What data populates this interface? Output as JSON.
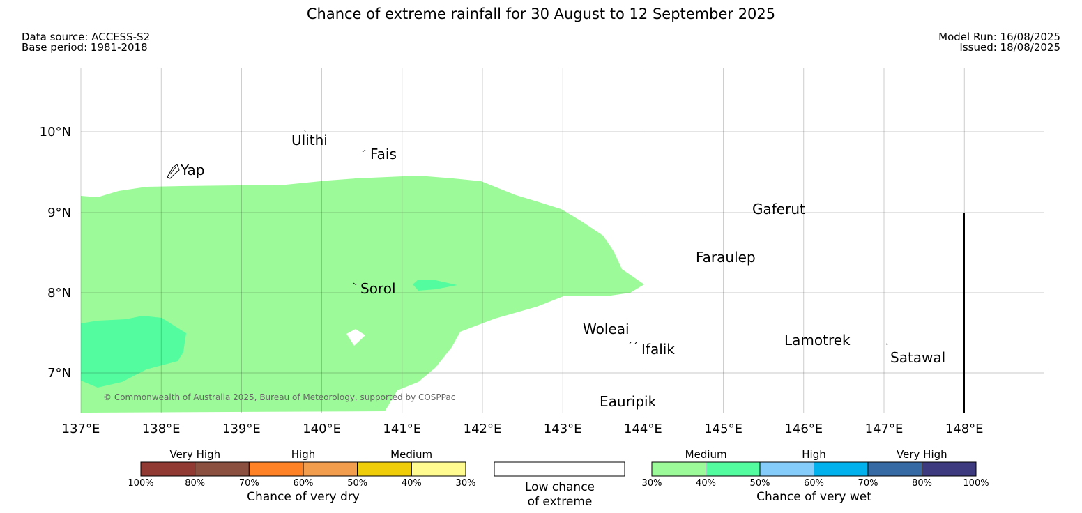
{
  "title": "Chance of extreme rainfall for 30 August to 12 September 2025",
  "data_source": "Data source: ACCESS-S2",
  "base_period": "Base period: 1981-2018",
  "model_run": "Model Run: 16/08/2025",
  "issued": "Issued: 18/08/2025",
  "copyright": "© Commonwealth of Australia 2025, Bureau of Meteorology, supported by COSPPac",
  "map": {
    "lon_ticks": [
      "137°E",
      "138°E",
      "139°E",
      "140°E",
      "141°E",
      "142°E",
      "143°E",
      "144°E",
      "145°E",
      "146°E",
      "147°E",
      "148°E"
    ],
    "lat_ticks": [
      "10°N",
      "9°N",
      "8°N",
      "7°N"
    ],
    "places": [
      "Yap",
      "Ulithi",
      "Fais",
      "Gaferut",
      "Faraulep",
      "Sorol",
      "Woleai",
      "Ifalik",
      "Lamotrek",
      "Satawal",
      "Eauripik"
    ],
    "colors": {
      "medium_wet": "#9cfb98",
      "medium_wet_40": "#53fd9f"
    }
  },
  "legend": {
    "dry": {
      "groups": [
        "Very High",
        "High",
        "Medium"
      ],
      "ticks": [
        "100%",
        "80%",
        "70%",
        "60%",
        "50%",
        "40%",
        "30%"
      ],
      "colors": [
        "#913a33",
        "#8c5040",
        "#ff8326",
        "#f29c4d",
        "#f0cd09",
        "#fffb90"
      ],
      "caption": "Chance of very dry"
    },
    "low": {
      "line1": "Low chance",
      "line2": "of extreme"
    },
    "wet": {
      "groups": [
        "Medium",
        "High",
        "Very High"
      ],
      "ticks": [
        "30%",
        "40%",
        "50%",
        "60%",
        "70%",
        "80%",
        "100%"
      ],
      "colors": [
        "#9cfb98",
        "#53fd9f",
        "#85ccfa",
        "#00b1ee",
        "#366aa4",
        "#3e3a7f"
      ],
      "caption": "Chance of very wet"
    }
  }
}
